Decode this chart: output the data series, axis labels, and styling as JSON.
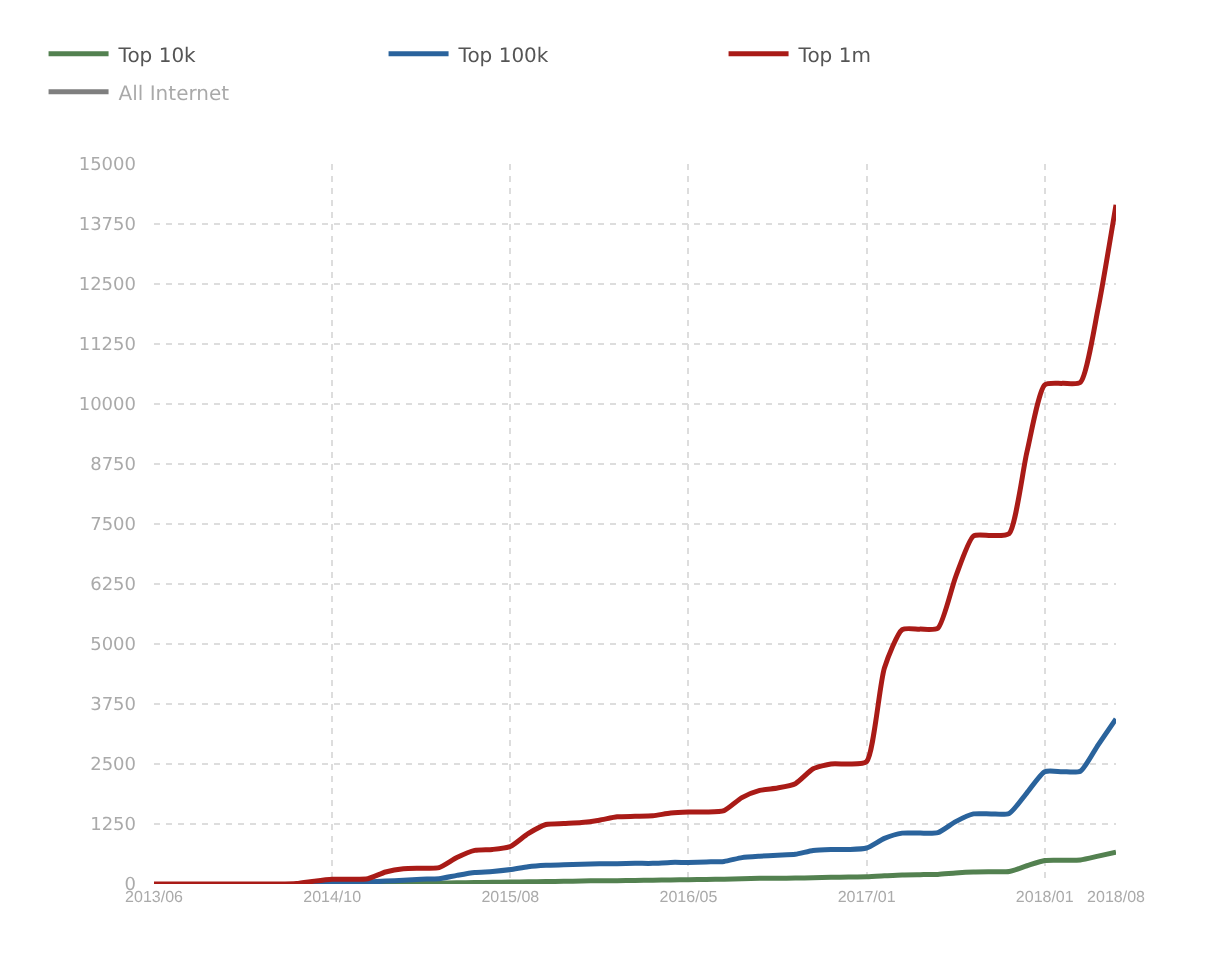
{
  "chart_data": {
    "type": "line",
    "categories": [
      "2013/06",
      null,
      null,
      null,
      null,
      null,
      null,
      null,
      null,
      null,
      "2014/10",
      null,
      null,
      null,
      null,
      null,
      null,
      null,
      null,
      null,
      "2015/08",
      null,
      null,
      null,
      null,
      null,
      null,
      null,
      null,
      null,
      "2016/05",
      null,
      null,
      null,
      null,
      null,
      null,
      null,
      null,
      null,
      "2017/01",
      null,
      null,
      null,
      null,
      null,
      null,
      null,
      null,
      null,
      "2018/01",
      null,
      null,
      null,
      "2018/08"
    ],
    "series": [
      {
        "name": "Top 10k",
        "color": "#538150",
        "values": [
          null,
          null,
          null,
          null,
          null,
          null,
          null,
          null,
          null,
          null,
          null,
          null,
          10,
          10,
          10,
          10,
          20,
          25,
          30,
          35,
          40,
          45,
          50,
          55,
          60,
          70,
          70,
          75,
          80,
          85,
          90,
          95,
          100,
          110,
          120,
          120,
          125,
          130,
          140,
          145,
          150,
          170,
          190,
          195,
          200,
          230,
          250,
          255,
          260,
          380,
          490,
          495,
          500,
          580,
          665
        ]
      },
      {
        "name": "Top 100k",
        "color": "#2a639c",
        "values": [
          null,
          null,
          null,
          null,
          null,
          null,
          null,
          null,
          0,
          0,
          10,
          20,
          40,
          60,
          80,
          100,
          110,
          180,
          240,
          260,
          300,
          360,
          390,
          400,
          410,
          420,
          420,
          430,
          430,
          450,
          450,
          460,
          470,
          550,
          580,
          600,
          620,
          700,
          720,
          720,
          750,
          950,
          1060,
          1060,
          1070,
          1300,
          1460,
          1460,
          1470,
          1900,
          2340,
          2340,
          2350,
          2900,
          3440
        ]
      },
      {
        "name": "Top 1m",
        "color": "#a91b17",
        "values": [
          0,
          0,
          0,
          0,
          0,
          0,
          0,
          0,
          10,
          60,
          100,
          100,
          110,
          250,
          320,
          330,
          340,
          550,
          700,
          720,
          780,
          1050,
          1240,
          1260,
          1280,
          1330,
          1400,
          1410,
          1420,
          1480,
          1500,
          1500,
          1530,
          1800,
          1950,
          2000,
          2090,
          2400,
          2500,
          2500,
          2550,
          4500,
          5300,
          5310,
          5330,
          6400,
          7250,
          7260,
          7300,
          9000,
          10400,
          10430,
          10450,
          12000,
          14150
        ]
      },
      {
        "name": "All Internet",
        "color": "#000000",
        "values": [
          null,
          null,
          null,
          null,
          null,
          null,
          null,
          null,
          null,
          null,
          null,
          null,
          null,
          null,
          null,
          null,
          null,
          null,
          null,
          null,
          null,
          null,
          null,
          null,
          null,
          null,
          null,
          null,
          null,
          null,
          null,
          null,
          null,
          null,
          null,
          null,
          null,
          null,
          null,
          null,
          null,
          null,
          null,
          null,
          null,
          null,
          null,
          null,
          null,
          null,
          null,
          null,
          null,
          null,
          null
        ]
      }
    ],
    "ylim": [
      0,
      15000
    ],
    "yticks": [
      0,
      1250,
      2500,
      3750,
      5000,
      6250,
      7500,
      8750,
      10000,
      11250,
      12500,
      13750,
      15000
    ],
    "grid": true,
    "legend": "top",
    "marker": "none",
    "line_style": "solid"
  }
}
